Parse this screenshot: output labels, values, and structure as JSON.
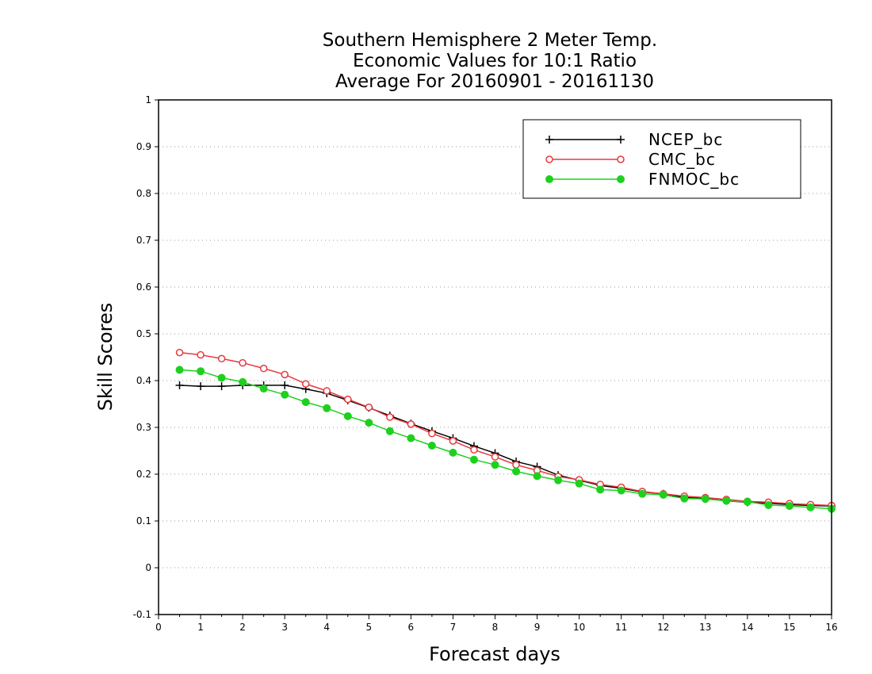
{
  "chart_data": {
    "type": "line",
    "title": [
      "Southern Hemisphere 2 Meter Temp.",
      "Economic Values for 10:1 Ratio",
      "Average For 20160901 - 20161130"
    ],
    "xlabel": "Forecast days",
    "ylabel": "Skill Scores",
    "xlim": [
      0,
      16
    ],
    "ylim": [
      -0.1,
      1
    ],
    "xticks": [
      "0",
      "1",
      "2",
      "3",
      "4",
      "5",
      "6",
      "7",
      "8",
      "9",
      "10",
      "11",
      "12",
      "13",
      "14",
      "15",
      "16"
    ],
    "yticks": [
      "-0.1",
      "0",
      "0.1",
      "0.2",
      "0.3",
      "0.4",
      "0.5",
      "0.6",
      "0.7",
      "0.8",
      "0.9",
      "1"
    ],
    "grid": "horizontal dotted",
    "legend_position": "top-right",
    "x": [
      0.5,
      1,
      1.5,
      2,
      2.5,
      3,
      3.5,
      4,
      4.5,
      5,
      5.5,
      6,
      6.5,
      7,
      7.5,
      8,
      8.5,
      9,
      9.5,
      10,
      10.5,
      11,
      11.5,
      12,
      12.5,
      13,
      13.5,
      14,
      14.5,
      15,
      15.5,
      16
    ],
    "series": [
      {
        "name": "NCEP_bc",
        "color": "#000000",
        "marker": "plus",
        "values": [
          0.39,
          0.388,
          0.388,
          0.39,
          0.39,
          0.39,
          0.382,
          0.373,
          0.358,
          0.342,
          0.325,
          0.308,
          0.292,
          0.277,
          0.26,
          0.245,
          0.227,
          0.216,
          0.198,
          0.187,
          0.176,
          0.17,
          0.162,
          0.158,
          0.15,
          0.148,
          0.143,
          0.14,
          0.138,
          0.135,
          0.133,
          0.132
        ]
      },
      {
        "name": "CMC_bc",
        "color": "#e8383d",
        "marker": "open-circle",
        "values": [
          0.46,
          0.455,
          0.447,
          0.438,
          0.426,
          0.413,
          0.393,
          0.378,
          0.36,
          0.343,
          0.322,
          0.307,
          0.287,
          0.271,
          0.252,
          0.237,
          0.22,
          0.208,
          0.195,
          0.188,
          0.178,
          0.172,
          0.163,
          0.158,
          0.153,
          0.15,
          0.146,
          0.142,
          0.14,
          0.137,
          0.135,
          0.133
        ]
      },
      {
        "name": "FNMOC_bc",
        "color": "#1ed01e",
        "marker": "filled-circle",
        "values": [
          0.423,
          0.42,
          0.406,
          0.397,
          0.383,
          0.37,
          0.354,
          0.341,
          0.324,
          0.31,
          0.292,
          0.277,
          0.261,
          0.246,
          0.231,
          0.22,
          0.206,
          0.196,
          0.187,
          0.18,
          0.167,
          0.165,
          0.158,
          0.156,
          0.148,
          0.147,
          0.143,
          0.141,
          0.134,
          0.132,
          0.129,
          0.126
        ]
      }
    ]
  }
}
